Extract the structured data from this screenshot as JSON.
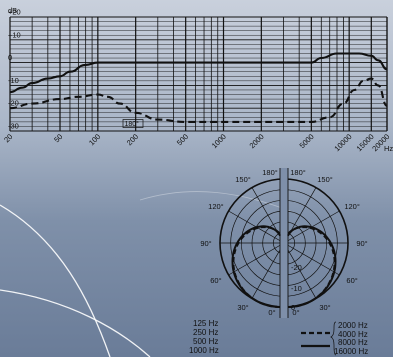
{
  "colors": {
    "curve": "#111111",
    "grid": "#111111"
  },
  "chart_data": [
    {
      "type": "line",
      "ylabel": "dB",
      "x_scale": "log",
      "xlim": [
        20,
        20000
      ],
      "ylim": [
        -30,
        20
      ],
      "y_ticks": [
        {
          "v": 20,
          "label": "+20"
        },
        {
          "v": 10,
          "label": "+10"
        },
        {
          "v": 0,
          "label": "0"
        },
        {
          "v": -10,
          "label": "-10"
        },
        {
          "v": -20,
          "label": "-20"
        },
        {
          "v": -30,
          "label": "-30"
        }
      ],
      "x_ticks": [
        "20",
        "50",
        "100",
        "200",
        "500",
        "1000",
        "2000",
        "5000",
        "10000",
        "15000",
        "20000",
        "Hz"
      ],
      "annotation": "180°",
      "series": [
        {
          "style": "solid",
          "x": [
            20,
            25,
            30,
            40,
            50,
            60,
            80,
            100,
            200,
            500,
            1000,
            2000,
            3000,
            5000,
            6000,
            8000,
            10000,
            12000,
            15000,
            17000,
            20000
          ],
          "y": [
            -13,
            -11,
            -9,
            -7,
            -6,
            -4,
            -1,
            0,
            0,
            0,
            0,
            0,
            0,
            0,
            2,
            4,
            4,
            4,
            3,
            1,
            -3
          ]
        },
        {
          "style": "dashed",
          "x": [
            20,
            30,
            50,
            70,
            100,
            120,
            150,
            200,
            300,
            500,
            1000,
            2000,
            3000,
            5000,
            7000,
            9000,
            11000,
            13000,
            15000,
            17000,
            20000
          ],
          "y": [
            -20,
            -18,
            -16,
            -15,
            -14,
            -15,
            -18,
            -22,
            -25,
            -26,
            -26,
            -26,
            -26,
            -26,
            -24,
            -18,
            -12,
            -8,
            -7,
            -10,
            -19
          ]
        }
      ]
    },
    {
      "type": "polar",
      "angle_labels_left": [
        "180°",
        "150°",
        "120°",
        "90°",
        "60°",
        "30°",
        "0°"
      ],
      "angle_labels_right": [
        "180°",
        "150°",
        "120°",
        "90°",
        "60°",
        "30°",
        "0°"
      ],
      "radial_labels": [
        "-20",
        "-10",
        "0"
      ],
      "legend_left": [
        "125 Hz",
        "250 Hz",
        "500 Hz",
        "1000 Hz"
      ],
      "legend_right": [
        {
          "style": "dashed",
          "labels": [
            "2000 Hz",
            "4000 Hz"
          ]
        },
        {
          "style": "solid",
          "labels": [
            "8000 Hz",
            "16000 Hz"
          ]
        }
      ]
    }
  ]
}
